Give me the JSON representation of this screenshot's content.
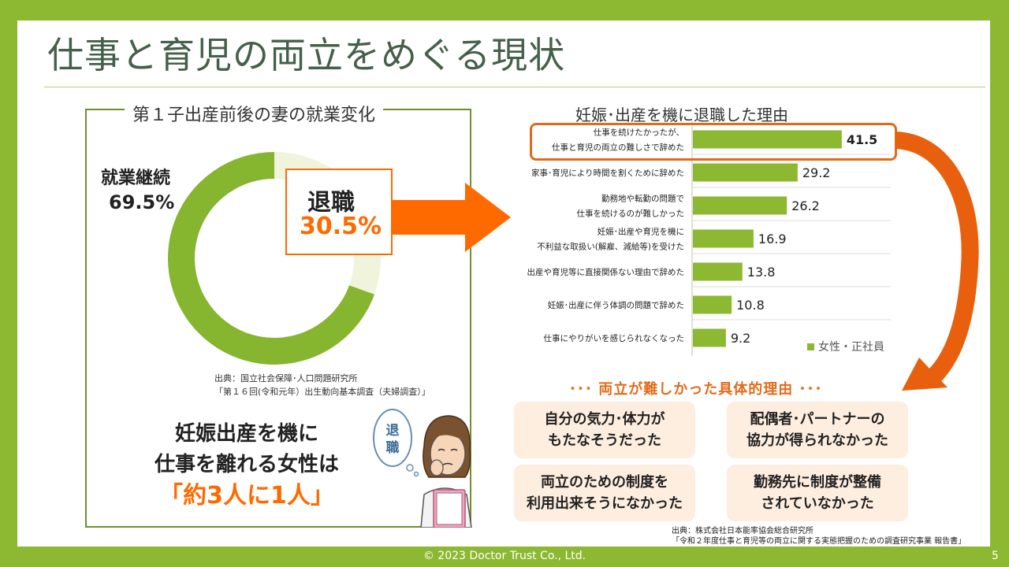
{
  "title": "仕事と育児の両立をめぐる現状",
  "left": {
    "panel_title": "第１子出産前後の妻の就業変化",
    "continued_label": "就業継続",
    "continued_pct": "69.5%",
    "retired_label": "退職",
    "retired_pct": "30.5%",
    "donut": {
      "continued": 69.5,
      "retired": 30.5,
      "continued_color": "#86b52f",
      "retired_color": "#f1f4dc"
    },
    "source_line1": "出典：国立社会保障･人口問題研究所",
    "source_line2": "「第１６回(令和元年）出生動向基本調査（夫婦調査）」",
    "message_line1": "妊娠出産を機に",
    "message_line2": "仕事を離れる女性は",
    "message_line3": "「約3人に1人」",
    "bubble_text_1": "退",
    "bubble_text_2": "職"
  },
  "right": {
    "chart_title": "妊娠･出産を機に退職した理由",
    "legend_label": "女性・正社員",
    "reasons_title": "･･･ 両立が難しかった具体的理由 ･･･",
    "cards": [
      {
        "line1": "自分の気力･体力が",
        "line2": "もたなそうだった"
      },
      {
        "line1": "配偶者･パートナーの",
        "line2": "協力が得られなかった"
      },
      {
        "line1": "両立のための制度を",
        "line2": "利用出来そうになかった"
      },
      {
        "line1": "勤務先に制度が整備",
        "line2": "されていなかった"
      }
    ],
    "source_line1": "出典：株式会社日本能率協会総合研究所",
    "source_line2": "「令和２年度仕事と育児等の両立に関する実態把握のための調査研究事業 報告書」"
  },
  "chart_data": {
    "type": "bar",
    "orientation": "horizontal",
    "title": "妊娠･出産を機に退職した理由",
    "categories": [
      [
        "仕事を続けたかったが、",
        "仕事と育児の両立の難しさで辞めた"
      ],
      [
        "家事･育児により時間を割くために辞めた"
      ],
      [
        "勤務地や転勤の問題で",
        "仕事を続けるのが難しかった"
      ],
      [
        "妊娠･出産や育児を機に",
        "不利益な取扱い(解雇、減給等)を受けた"
      ],
      [
        "出産や育児等に直接関係ない理由で辞めた"
      ],
      [
        "妊娠･出産に伴う体調の問題で辞めた"
      ],
      [
        "仕事にやりがいを感じられなくなった"
      ]
    ],
    "series": [
      {
        "name": "女性・正社員",
        "values": [
          41.5,
          29.2,
          26.2,
          16.9,
          13.8,
          10.8,
          9.2
        ]
      }
    ],
    "value_labels": [
      "41.5",
      "29.2",
      "26.2",
      "16.9",
      "13.8",
      "10.8",
      "9.2"
    ],
    "xlim": [
      0,
      50
    ],
    "bar_color": "#8cb832",
    "highlight_index": 0,
    "legend": "bottom-right",
    "grid": false
  },
  "footer": "© 2023 Doctor Trust Co., Ltd.",
  "page_number": "5",
  "colors": {
    "brand_green": "#8cb832",
    "accent_orange": "#ff6a00",
    "title_color": "#45604a"
  }
}
